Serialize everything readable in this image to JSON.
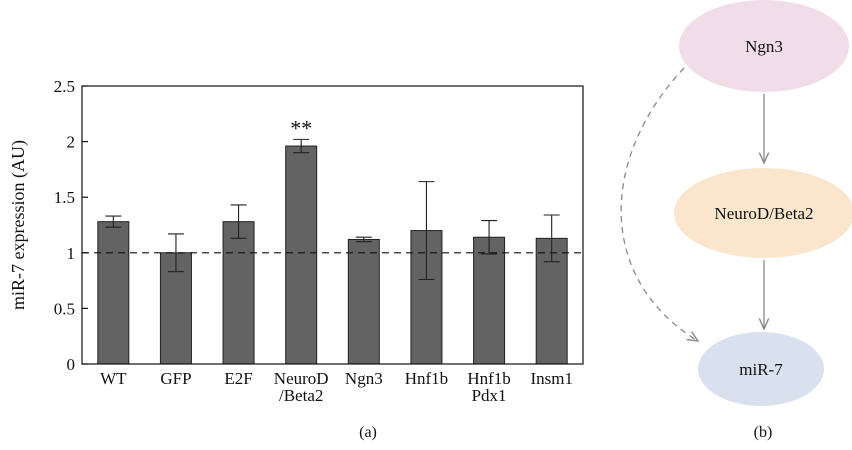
{
  "chart_data": {
    "type": "bar",
    "ylabel": "miR-7 expression (AU)",
    "ylim": [
      0,
      2.5
    ],
    "y_ticks": [
      {
        "value": 0,
        "label": "0"
      },
      {
        "value": 0.5,
        "label": "0.5"
      },
      {
        "value": 1,
        "label": "1"
      },
      {
        "value": 1.5,
        "label": "1.5"
      },
      {
        "value": 2,
        "label": "2"
      },
      {
        "value": 2.5,
        "label": "2.5"
      }
    ],
    "categories": [
      {
        "name": "WT",
        "lines": [
          "WT"
        ],
        "value": 1.28,
        "err": 0.05,
        "annotation": ""
      },
      {
        "name": "GFP",
        "lines": [
          "GFP"
        ],
        "value": 1.0,
        "err": 0.17,
        "annotation": ""
      },
      {
        "name": "E2F",
        "lines": [
          "E2F"
        ],
        "value": 1.28,
        "err": 0.15,
        "annotation": ""
      },
      {
        "name": "NeuroD/Beta2",
        "lines": [
          "NeuroD",
          "/Beta2"
        ],
        "value": 1.96,
        "err": 0.06,
        "annotation": "**"
      },
      {
        "name": "Ngn3",
        "lines": [
          "Ngn3"
        ],
        "value": 1.12,
        "err": 0.02,
        "annotation": ""
      },
      {
        "name": "Hnf1b",
        "lines": [
          "Hnf1b"
        ],
        "value": 1.2,
        "err": 0.44,
        "annotation": ""
      },
      {
        "name": "Hnf1b Pdx1",
        "lines": [
          "Hnf1b",
          "Pdx1"
        ],
        "value": 1.14,
        "err": 0.15,
        "annotation": ""
      },
      {
        "name": "Insm1",
        "lines": [
          "Insm1"
        ],
        "value": 1.13,
        "err": 0.21,
        "annotation": ""
      }
    ],
    "reference_line": 1,
    "bar_color": "#636363"
  },
  "panel_labels": {
    "a": "(a)",
    "b": "(b)"
  },
  "diagram": {
    "nodes": [
      {
        "id": "ngn3",
        "label": "Ngn3",
        "color": "#f0dde7"
      },
      {
        "id": "neurod",
        "label": "NeuroD/Beta2",
        "color": "#f9e6cc"
      },
      {
        "id": "mir7",
        "label": "miR-7",
        "color": "#d9e1ee"
      }
    ],
    "edges": [
      {
        "from": "ngn3",
        "to": "neurod",
        "style": "solid"
      },
      {
        "from": "neurod",
        "to": "mir7",
        "style": "solid"
      },
      {
        "from": "ngn3",
        "to": "mir7",
        "style": "dashed"
      }
    ]
  }
}
